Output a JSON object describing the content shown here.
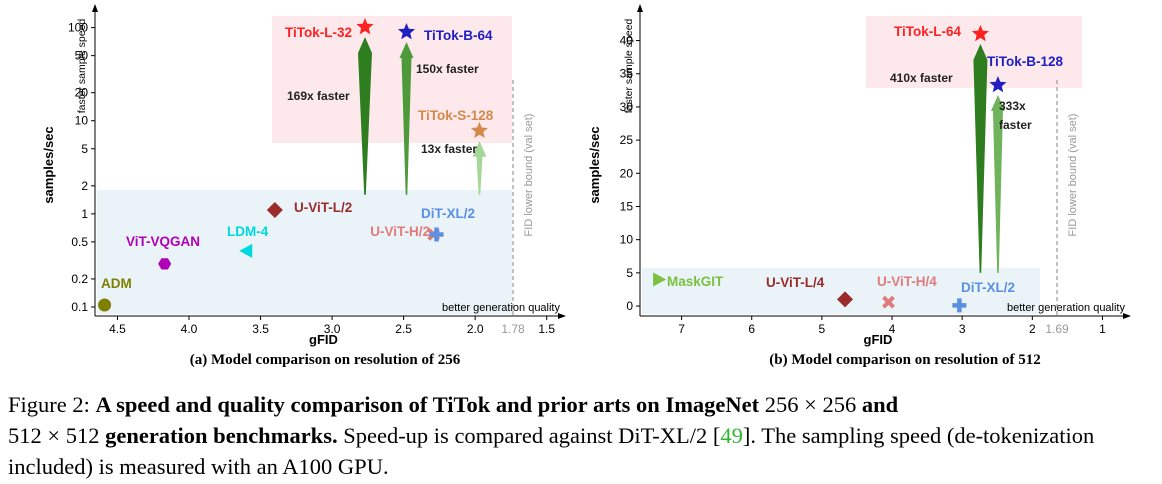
{
  "panel_a": {
    "subcaption": "(a) Model comparison on resolution of 256",
    "chart_data": {
      "type": "scatter",
      "xlabel": "gFID",
      "ylabel": "samples/sec",
      "y_arrow_label": "faster sample speed",
      "x_arrow_label": "better generation quality",
      "x_axis_reversed": true,
      "y_scale": "log",
      "xlim": [
        4.65,
        1.47
      ],
      "ylim": [
        0.08,
        140
      ],
      "x_ticks": [
        "4.5",
        "4.0",
        "3.5",
        "3.0",
        "2.5",
        "2.0",
        "1.5"
      ],
      "x_tick_values": [
        4.5,
        4.0,
        3.5,
        3.0,
        2.5,
        2.0,
        1.5
      ],
      "y_ticks": [
        "0.1",
        "0.2",
        "0.5",
        "1",
        "2",
        "5",
        "10",
        "20",
        "50",
        "100"
      ],
      "y_tick_values": [
        0.1,
        0.2,
        0.5,
        1,
        2,
        5,
        10,
        20,
        50,
        100
      ],
      "lower_bound": {
        "value": 1.78,
        "tick_label": "1.78",
        "label": "FID lower bound (val set)"
      },
      "points": [
        {
          "name": "ADM",
          "x": 4.59,
          "y": 0.105,
          "marker": "circle",
          "color": "#808000",
          "label_pos": "above"
        },
        {
          "name": "ViT-VQGAN",
          "x": 4.17,
          "y": 0.29,
          "marker": "hexagon",
          "color": "#b000b8",
          "label_pos": "above"
        },
        {
          "name": "LDM-4",
          "x": 3.6,
          "y": 0.4,
          "marker": "triangle-left",
          "color": "#00d8e0",
          "label_pos": "above-left"
        },
        {
          "name": "U-ViT-L/2",
          "x": 3.4,
          "y": 1.1,
          "marker": "diamond",
          "color": "#9c2b2b",
          "label_pos": "right"
        },
        {
          "name": "U-ViT-H/2",
          "x": 2.29,
          "y": 0.6,
          "marker": "x",
          "color": "#e07b7b",
          "label_pos": "left"
        },
        {
          "name": "DiT-XL/2",
          "x": 2.27,
          "y": 0.6,
          "marker": "plus",
          "color": "#5b8fe0",
          "label_pos": "above"
        },
        {
          "name": "TiTok-L-32",
          "x": 2.77,
          "y": 101.6,
          "marker": "star",
          "color": "#ff2020",
          "label_pos": "left"
        },
        {
          "name": "TiTok-B-64",
          "x": 2.48,
          "y": 89.8,
          "marker": "star",
          "color": "#2020c0",
          "label_pos": "right"
        },
        {
          "name": "TiTok-S-128",
          "x": 1.97,
          "y": 7.8,
          "marker": "star",
          "color": "#d4884a",
          "label_pos": "above"
        }
      ],
      "speedups": [
        {
          "label": "169x faster",
          "x": 2.77,
          "from": 1.6,
          "to": 101.6,
          "color": "#2e7d1e"
        },
        {
          "label": "150x faster",
          "x": 2.48,
          "from": 1.6,
          "to": 89.8,
          "color": "#4e9a3a"
        },
        {
          "label": "13x faster",
          "x": 1.97,
          "from": 1.6,
          "to": 7.8,
          "color": "#a6d79a"
        }
      ]
    }
  },
  "panel_b": {
    "subcaption": "(b) Model comparison on resolution of 512",
    "chart_data": {
      "type": "scatter",
      "xlabel": "gFID",
      "ylabel": "samples/sec",
      "y_arrow_label": "faster sample speed",
      "x_arrow_label": "better generation quality",
      "x_axis_reversed": true,
      "y_scale": "linear",
      "xlim": [
        7.55,
        0.85
      ],
      "ylim": [
        -1.5,
        44
      ],
      "x_ticks": [
        "7",
        "6",
        "5",
        "4",
        "3",
        "2",
        "1"
      ],
      "x_tick_values": [
        7,
        6,
        5,
        4,
        3,
        2,
        1
      ],
      "y_ticks": [
        "0",
        "5",
        "10",
        "15",
        "20",
        "25",
        "30",
        "35",
        "40"
      ],
      "y_tick_values": [
        0,
        5,
        10,
        15,
        20,
        25,
        30,
        35,
        40
      ],
      "lower_bound": {
        "value": 1.69,
        "tick_label": "1.69",
        "label": "FID lower bound (val set)"
      },
      "points": [
        {
          "name": "MaskGIT",
          "x": 7.32,
          "y": 4.0,
          "marker": "triangle-right",
          "color": "#7cc040",
          "label_pos": "right-below"
        },
        {
          "name": "U-ViT-L/4",
          "x": 4.67,
          "y": 1.0,
          "marker": "diamond",
          "color": "#9c2b2b",
          "label_pos": "above-left"
        },
        {
          "name": "U-ViT-H/4",
          "x": 4.05,
          "y": 0.6,
          "marker": "x",
          "color": "#e07b7b",
          "label_pos": "above-right"
        },
        {
          "name": "DiT-XL/2",
          "x": 3.04,
          "y": 0.1,
          "marker": "plus",
          "color": "#5b8fe0",
          "label_pos": "above"
        },
        {
          "name": "TiTok-L-64",
          "x": 2.74,
          "y": 41.0,
          "marker": "star",
          "color": "#ff2020",
          "label_pos": "left"
        },
        {
          "name": "TiTok-B-128",
          "x": 2.49,
          "y": 33.3,
          "marker": "star",
          "color": "#2020c0",
          "label_pos": "above-right"
        }
      ],
      "speedups": [
        {
          "label": "410x faster",
          "x": 2.74,
          "from": 5,
          "to": 41.0,
          "color": "#2e7d1e"
        },
        {
          "label": "333x\nfaster",
          "x": 2.49,
          "from": 5,
          "to": 33.3,
          "color": "#6fb35a"
        }
      ]
    }
  },
  "caption": {
    "prefix": "Figure 2: ",
    "bold_title": "A speed and quality comparison of TiTok and prior arts on ImageNet",
    "res1": " 256 × 256 ",
    "bold_and": "and",
    "res2": "512 × 512",
    "bold_gen": " generation benchmarks.",
    "rest1": " Speed-up is compared against DiT-XL/2 [",
    "citation": "49",
    "rest2": "]. The sampling speed (de-tokenization included) is measured with an A100 GPU."
  }
}
